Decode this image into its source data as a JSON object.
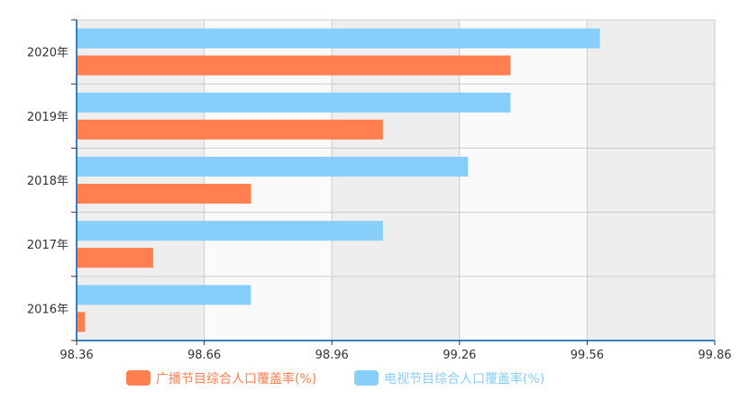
{
  "chart_data": {
    "type": "bar",
    "orientation": "horizontal",
    "categories": [
      "2016年",
      "2017年",
      "2018年",
      "2019年",
      "2020年"
    ],
    "series": [
      {
        "name": "广播节目综合人口覆盖率(%)",
        "color": "#FF7F50",
        "values": [
          98.38,
          98.54,
          98.77,
          99.08,
          99.38
        ]
      },
      {
        "name": "电视节目综合人口覆盖率(%)",
        "color": "#87CEFA",
        "values": [
          98.77,
          99.08,
          99.28,
          99.38,
          99.59
        ]
      }
    ],
    "x_ticks": [
      "98.36",
      "98.66",
      "98.96",
      "99.26",
      "99.56",
      "99.86"
    ],
    "xlim": [
      98.36,
      99.86
    ],
    "title": "",
    "xlabel": "",
    "ylabel": "",
    "grid": true,
    "legend_position": "bottom",
    "colors": {
      "axis": "#3A7FC1",
      "band_shaded": "#EEEEEE",
      "band_light": "#FAFAFA",
      "grid": "#CCCCCC"
    }
  }
}
